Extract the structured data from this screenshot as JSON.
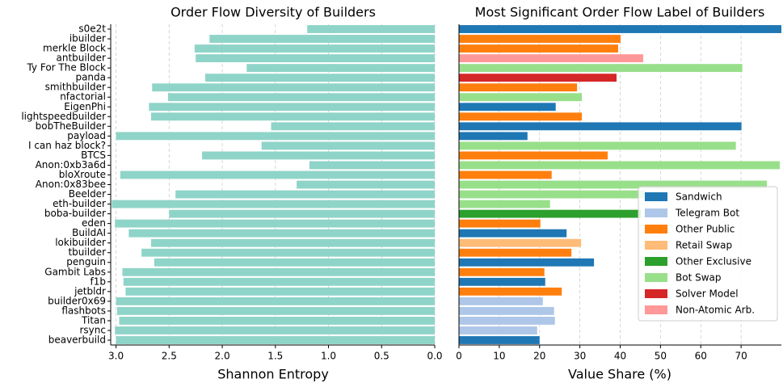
{
  "chart_data": [
    {
      "type": "barh",
      "title": "Order Flow Diversity of Builders",
      "xlabel": "Shannon Entropy",
      "categories": [
        "s0e2t",
        "ibuilder",
        "merkle Block",
        "antbuilder",
        "Ty For The Block",
        "panda",
        "smithbuilder",
        "nfactorial",
        "EigenPhi",
        "lightspeedbuilder",
        "bobTheBuilder",
        "payload",
        "I can haz block?",
        "BTCS",
        "Anon:0xb3a6d",
        "bloXroute",
        "Anon:0x83bee",
        "Beelder",
        "eth-builder",
        "boba-builder",
        "eden",
        "BuildAI",
        "lokibuilder",
        "tbuilder",
        "penguin",
        "Gambit Labs",
        "f1b",
        "jetbldr",
        "builder0x69",
        "flashbots",
        "Titan",
        "rsync",
        "beaverbuild"
      ],
      "values": [
        1.2,
        2.12,
        2.26,
        2.25,
        1.77,
        2.16,
        2.66,
        2.51,
        2.69,
        2.67,
        1.54,
        3.0,
        1.63,
        2.19,
        1.18,
        2.96,
        1.3,
        2.44,
        3.04,
        2.5,
        3.01,
        2.88,
        2.67,
        2.76,
        2.64,
        2.94,
        2.93,
        2.91,
        3.0,
        2.99,
        2.97,
        3.01,
        3.0
      ],
      "color": "#8fd4c8",
      "xlim": [
        3.05,
        0
      ],
      "xticks": [
        {
          "value": 3,
          "label": "3.0"
        },
        2.5,
        {
          "value": 2,
          "label": "2.0"
        },
        1.5,
        {
          "value": 1,
          "label": "1.0"
        },
        0.5,
        {
          "value": 0,
          "label": "0.0"
        }
      ],
      "grid": true
    },
    {
      "type": "barh",
      "title": "Most Significant Order Flow Label of Builders",
      "xlabel": "Value Share (%)",
      "series": [
        {
          "name": "Sandwich",
          "color": "#1f77b4",
          "values": [
            80,
            null,
            null,
            null,
            null,
            null,
            null,
            null,
            24.0,
            null,
            70.1,
            17.0,
            null,
            null,
            null,
            null,
            null,
            null,
            null,
            null,
            null,
            26.7,
            null,
            null,
            33.5,
            null,
            21.4,
            null,
            null,
            null,
            null,
            null,
            20.0
          ]
        },
        {
          "name": "Telegram Bot",
          "color": "#aec7e8",
          "values": [
            null,
            null,
            null,
            null,
            null,
            null,
            null,
            null,
            null,
            null,
            null,
            null,
            null,
            null,
            null,
            null,
            null,
            null,
            null,
            null,
            null,
            null,
            null,
            null,
            null,
            null,
            null,
            null,
            20.8,
            23.6,
            23.8,
            19.4,
            null
          ]
        },
        {
          "name": "Other Public",
          "color": "#ff7f0e",
          "values": [
            null,
            40.1,
            39.5,
            null,
            null,
            null,
            29.3,
            null,
            null,
            30.5,
            null,
            null,
            null,
            36.9,
            null,
            23.0,
            null,
            null,
            null,
            null,
            20.2,
            null,
            null,
            27.9,
            null,
            21.2,
            null,
            25.5,
            null,
            null,
            null,
            null,
            null
          ]
        },
        {
          "name": "Retail Swap",
          "color": "#ffbb78",
          "values": [
            null,
            null,
            null,
            null,
            null,
            null,
            null,
            null,
            null,
            null,
            null,
            null,
            null,
            null,
            null,
            null,
            null,
            null,
            null,
            null,
            null,
            null,
            30.3,
            null,
            null,
            null,
            null,
            null,
            null,
            null,
            null,
            null,
            null
          ]
        },
        {
          "name": "Other Exclusive",
          "color": "#2ca02c",
          "values": [
            null,
            null,
            null,
            null,
            null,
            null,
            null,
            null,
            null,
            null,
            null,
            null,
            null,
            null,
            null,
            null,
            null,
            null,
            null,
            45.1,
            null,
            null,
            null,
            null,
            null,
            null,
            null,
            null,
            null,
            null,
            null,
            null,
            null
          ]
        },
        {
          "name": "Bot Swap",
          "color": "#98df8a",
          "values": [
            null,
            null,
            null,
            null,
            70.3,
            null,
            null,
            30.5,
            null,
            null,
            null,
            null,
            68.7,
            null,
            79.6,
            null,
            76.4,
            46.7,
            22.6,
            null,
            null,
            null,
            null,
            null,
            null,
            null,
            null,
            null,
            null,
            null,
            null,
            null,
            null
          ]
        },
        {
          "name": "Solver Model",
          "color": "#d62728",
          "values": [
            null,
            null,
            null,
            null,
            null,
            39.1,
            null,
            null,
            null,
            null,
            null,
            null,
            null,
            null,
            null,
            null,
            null,
            null,
            null,
            null,
            null,
            null,
            null,
            null,
            null,
            null,
            null,
            null,
            null,
            null,
            null,
            null,
            null
          ]
        },
        {
          "name": "Non-Atomic Arb.",
          "color": "#ff9896",
          "values": [
            null,
            null,
            null,
            45.7,
            null,
            null,
            null,
            null,
            null,
            null,
            null,
            null,
            null,
            null,
            null,
            null,
            null,
            null,
            null,
            null,
            null,
            null,
            null,
            null,
            null,
            null,
            null,
            null,
            null,
            null,
            null,
            null,
            null
          ]
        }
      ],
      "xlim": [
        0,
        80
      ],
      "xticks": [
        0,
        10,
        20,
        30,
        40,
        50,
        60,
        70
      ],
      "grid": true,
      "legend": "lower right"
    }
  ]
}
